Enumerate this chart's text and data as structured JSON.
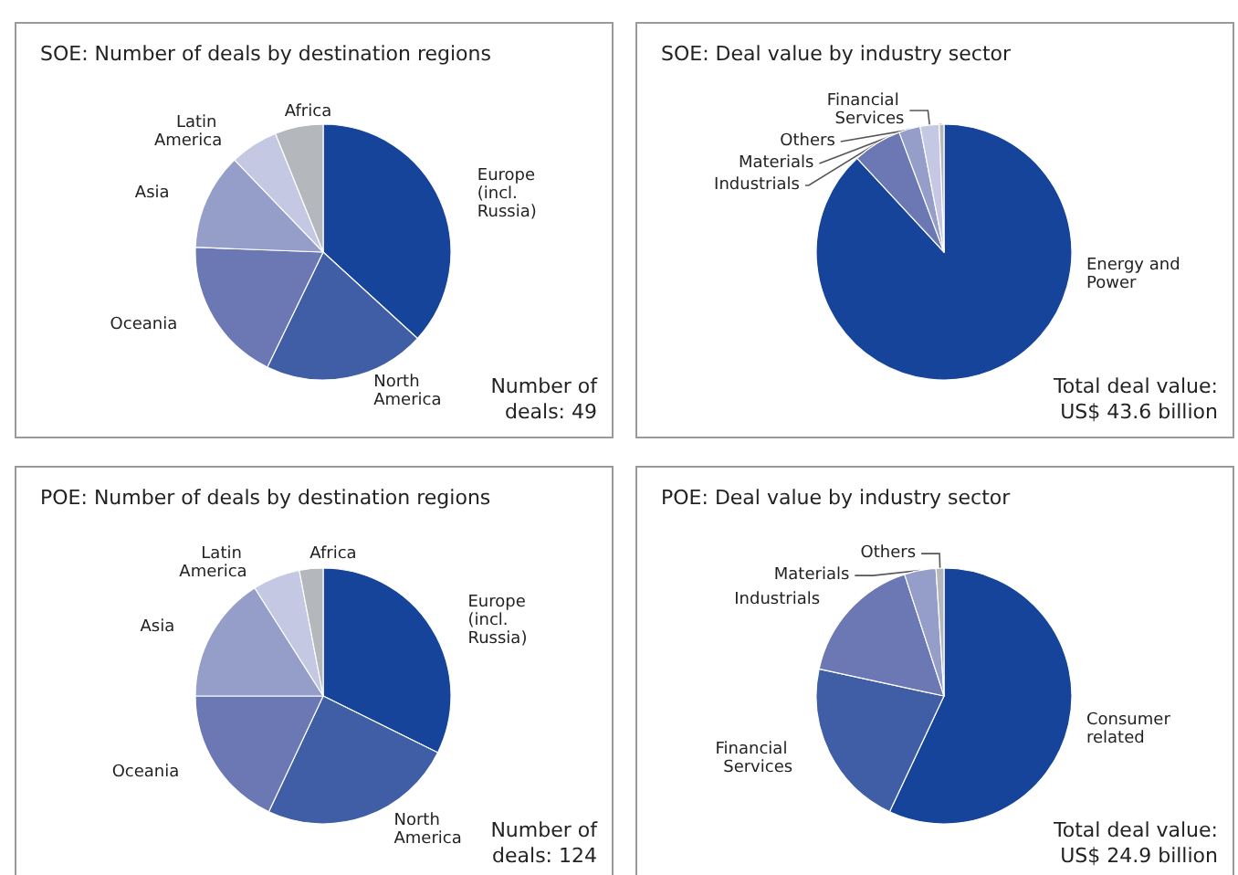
{
  "chart_data": [
    {
      "type": "pie",
      "title": "SOE: Number of deals by destination regions",
      "categories": [
        "Europe (incl. Russia)",
        "North America",
        "Oceania",
        "Asia",
        "Latin America",
        "Africa"
      ],
      "values": [
        36.8,
        20.4,
        18.4,
        12.2,
        6.1,
        6.1
      ],
      "colors": [
        "#16449a",
        "#3f5ea6",
        "#6b78b4",
        "#959dc9",
        "#c4c8e3",
        "#b4b7bc"
      ],
      "annotations": [
        "Number of deals: 49"
      ]
    },
    {
      "type": "pie",
      "title": "SOE: Deal value by industry sector",
      "categories": [
        "Energy and Power",
        "Industrials",
        "Materials",
        "Financial Services",
        "Others"
      ],
      "values": [
        88.1,
        6.2,
        2.7,
        2.4,
        0.6
      ],
      "colors": [
        "#16449a",
        "#6b78b4",
        "#959dc9",
        "#c4c8e3",
        "#b4b7bc"
      ],
      "annotations": [
        "Total deal value: US$ 43.6 billion"
      ]
    },
    {
      "type": "pie",
      "title": "POE: Number of deals by destination regions",
      "categories": [
        "Europe (incl. Russia)",
        "North America",
        "Oceania",
        "Asia",
        "Latin America",
        "Africa"
      ],
      "values": [
        32.3,
        24.7,
        18,
        16,
        6,
        3
      ],
      "colors": [
        "#16449a",
        "#3f5ea6",
        "#6b78b4",
        "#959dc9",
        "#c4c8e3",
        "#b4b7bc"
      ],
      "annotations": [
        "Number of deals: 124"
      ]
    },
    {
      "type": "pie",
      "title": "POE: Deal value by industry sector",
      "categories": [
        "Consumer related",
        "Financial Services",
        "Industrials",
        "Materials",
        "Others"
      ],
      "values": [
        57,
        21.4,
        16.6,
        4,
        1
      ],
      "colors": [
        "#16449a",
        "#3f5ea6",
        "#6b78b4",
        "#959dc9",
        "#b4b7bc"
      ],
      "annotations": [
        "Total deal value: US$ 24.9 billion"
      ]
    }
  ]
}
